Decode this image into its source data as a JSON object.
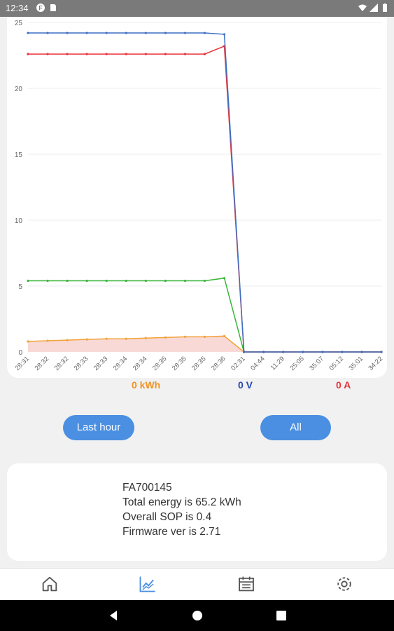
{
  "status_bar": {
    "time": "12:34"
  },
  "chart_data": {
    "type": "line",
    "categories": [
      "28:31",
      "28:32",
      "28:32",
      "28:33",
      "28:33",
      "28:34",
      "28:34",
      "28:35",
      "28:35",
      "28:35",
      "28:36",
      "02:31",
      "04:44",
      "11:29",
      "25:05",
      "35:07",
      "05:12",
      "35:01",
      "34:22"
    ],
    "ylim": [
      0,
      25
    ],
    "yticks": [
      0,
      5,
      10,
      15,
      20,
      25
    ],
    "grid": true,
    "series": [
      {
        "color": "#3f6fc4",
        "values": [
          24.2,
          24.2,
          24.2,
          24.2,
          24.2,
          24.2,
          24.2,
          24.2,
          24.2,
          24.2,
          24.1,
          0,
          0,
          0,
          0,
          0,
          0,
          0,
          0
        ]
      },
      {
        "color": "#e8333a",
        "values": [
          22.6,
          22.6,
          22.6,
          22.6,
          22.6,
          22.6,
          22.6,
          22.6,
          22.6,
          22.6,
          23.2,
          0,
          0,
          0,
          0,
          0,
          0,
          0,
          0
        ]
      },
      {
        "color": "#3ab53a",
        "values": [
          5.4,
          5.4,
          5.4,
          5.4,
          5.4,
          5.4,
          5.4,
          5.4,
          5.4,
          5.4,
          5.6,
          0,
          0,
          0,
          0,
          0,
          0,
          0,
          0
        ]
      },
      {
        "color": "#f2a23a",
        "fill": "#f6d0cc",
        "values": [
          0.8,
          0.85,
          0.9,
          0.95,
          1.0,
          1.0,
          1.05,
          1.1,
          1.15,
          1.15,
          1.2,
          0,
          0,
          0,
          0,
          0,
          0,
          0,
          0
        ]
      }
    ]
  },
  "legend": {
    "energy": {
      "text": "0 kWh",
      "color": "#f0921e"
    },
    "voltage": {
      "text": "0 V",
      "color": "#2448b0"
    },
    "current": {
      "text": "0 A",
      "color": "#e8333a"
    }
  },
  "buttons": {
    "last_hour": "Last hour",
    "all": "All"
  },
  "info": {
    "device_id": "FA700145",
    "total_energy": "Total energy is 65.2 kWh",
    "overall_sop": "Overall SOP is  0.4",
    "firmware": "Firmware ver is 2.71"
  },
  "nav": [
    "home-icon",
    "chart-icon",
    "calendar-icon",
    "gear-icon"
  ],
  "colors": {
    "accent": "#4a8fe2",
    "nav_active": "#4a8fe2",
    "nav_inactive": "#555555"
  }
}
